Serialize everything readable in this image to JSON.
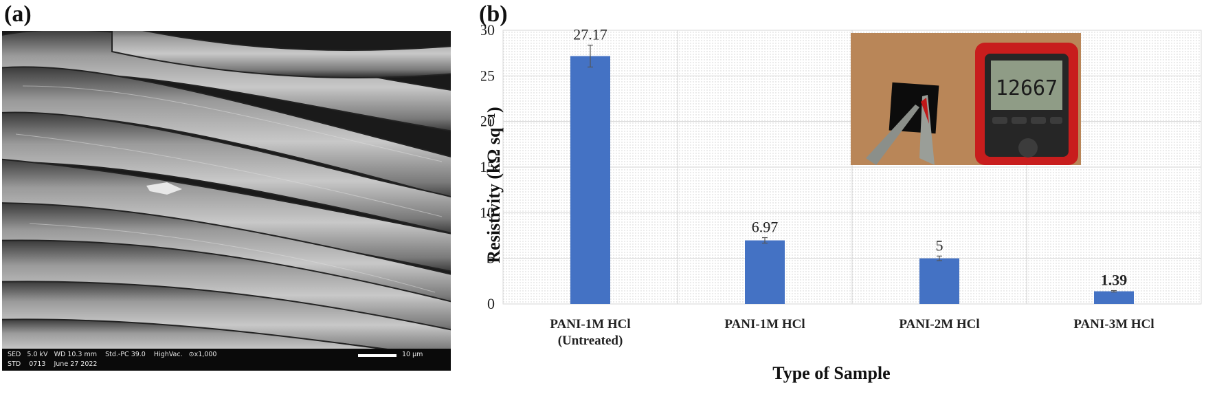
{
  "panels": {
    "a": "(a)",
    "b": "(b)"
  },
  "sem": {
    "info_row1": "SED   5.0 kV   WD 10.3 mm    Std.-PC 39.0    HighVac.   ⊙x1,000",
    "info_row2": "STD    0713    June 27 2022",
    "scale_label": "10 μm"
  },
  "chart_data": {
    "type": "bar",
    "categories": [
      "PANI-1M HCl\n(Untreated)",
      "PANI-1M HCl",
      "PANI-2M HCl",
      "PANI-3M HCl"
    ],
    "values": [
      27.17,
      6.97,
      5,
      1.39
    ],
    "value_labels": [
      "27.17",
      "6.97",
      "5",
      "1.39"
    ],
    "value_label_bold": [
      false,
      false,
      false,
      true
    ],
    "error": [
      1.2,
      0.3,
      0.25,
      0.08
    ],
    "ylim": [
      0,
      30
    ],
    "yticks": [
      0,
      5,
      10,
      15,
      20,
      25,
      30
    ],
    "xlabel": "Type of Sample",
    "ylabel": "Resistivity (kΩ sq⁻¹)",
    "bar_color": "#4472c4",
    "grid": true,
    "inset_photo": {
      "meter_reading": "12667"
    }
  }
}
